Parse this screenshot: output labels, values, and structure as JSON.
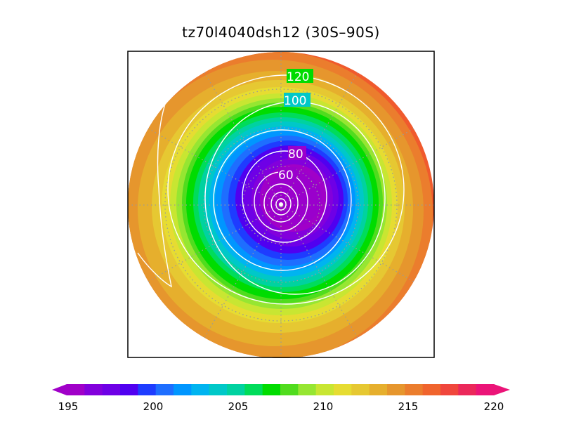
{
  "title": "tz70l4040dsh12 (30S–90S)",
  "colors": {
    "frame": "#000000",
    "contour": "#ffffff",
    "grid": "#9a9a9a"
  },
  "map": {
    "projection": "south-polar-stereographic",
    "lat_range": [
      "30S",
      "90S"
    ]
  },
  "colorbar": {
    "min": 195,
    "max": 220,
    "labels": [
      "195",
      "200",
      "205",
      "210",
      "215",
      "220"
    ],
    "colors": [
      "#a000c8",
      "#8200dc",
      "#6e00e6",
      "#5000f0",
      "#1e3cff",
      "#1e6eff",
      "#0096ff",
      "#00b4f0",
      "#00c8c8",
      "#00d2a0",
      "#00dc5a",
      "#00dc00",
      "#50dc1e",
      "#96e632",
      "#c8e632",
      "#e6dc32",
      "#e6c832",
      "#e6af2d",
      "#e6962d",
      "#eb7d2d",
      "#f0642d",
      "#f0463c",
      "#eb285a",
      "#eb1478"
    ]
  },
  "contours": {
    "labels": [
      "120",
      "100",
      "80",
      "60"
    ]
  }
}
